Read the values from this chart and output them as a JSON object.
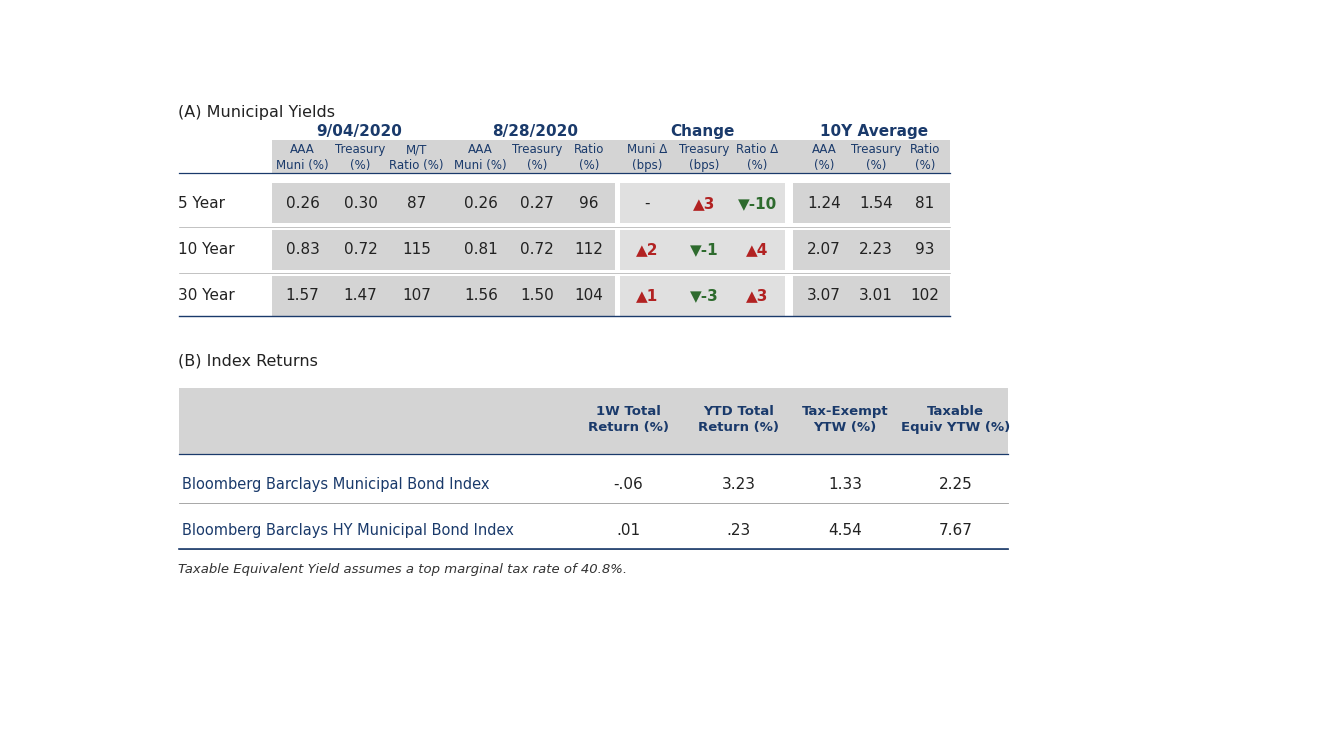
{
  "title_a": "(A) Municipal Yields",
  "title_b": "(B) Index Returns",
  "footnote": "Taxable Equivalent Yield assumes a top marginal tax rate of 40.8%.",
  "group_headers": [
    "9/04/2020",
    "8/28/2020",
    "Change",
    "10Y Average"
  ],
  "col_headers_line1": [
    "AAA",
    "Treasury",
    "M/T",
    "AAA",
    "Treasury",
    "Ratio",
    "Muni Δ",
    "Treasury",
    "Ratio Δ",
    "AAA",
    "Treasury",
    "Ratio"
  ],
  "col_headers_line2": [
    "Muni (%)",
    "(%)",
    "Ratio (%)",
    "Muni (%)",
    "(%)",
    "(%)",
    "(bps)",
    "(bps)",
    "(%)",
    "(%)",
    "(%)",
    "(%)"
  ],
  "row_labels": [
    "5 Year",
    "10 Year",
    "30 Year"
  ],
  "rows": [
    [
      "0.26",
      "0.30",
      "87",
      "0.26",
      "0.27",
      "96",
      "-",
      "▲3",
      "▼-10",
      "1.24",
      "1.54",
      "81"
    ],
    [
      "0.83",
      "0.72",
      "115",
      "0.81",
      "0.72",
      "112",
      "▲2",
      "▼-1",
      "▲4",
      "2.07",
      "2.23",
      "93"
    ],
    [
      "1.57",
      "1.47",
      "107",
      "1.56",
      "1.50",
      "104",
      "▲1",
      "▼-3",
      "▲3",
      "3.07",
      "3.01",
      "102"
    ]
  ],
  "index_col_headers": [
    "1W Total\nReturn (%)",
    "YTD Total\nReturn (%)",
    "Tax-Exempt\nYTW (%)",
    "Taxable\nEquiv YTW (%)"
  ],
  "index_rows": [
    {
      "label": "Bloomberg Barclays Municipal Bond Index",
      "values": [
        "-.06",
        "3.23",
        "1.33",
        "2.25"
      ]
    },
    {
      "label": "Bloomberg Barclays HY Municipal Bond Index",
      "values": [
        ".01",
        ".23",
        "4.54",
        "7.67"
      ]
    }
  ],
  "header_color": "#1a3a6b",
  "dark_text": "#222222",
  "index_label_color": "#1a3a6b",
  "bg_gray": "#d4d4d4",
  "bg_light": "#e0e0e0",
  "up_color": "#b22222",
  "down_color": "#2e6b2e",
  "fig_w": 13.35,
  "fig_h": 7.39,
  "dpi": 100
}
